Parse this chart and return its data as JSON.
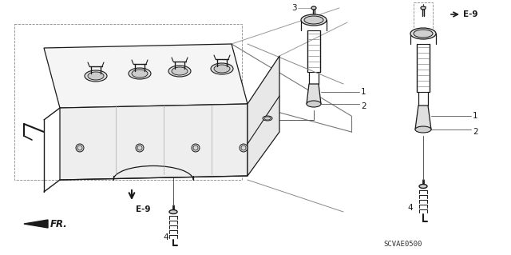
{
  "bg_color": "#ffffff",
  "line_color": "#1a1a1a",
  "dash_color": "#555555",
  "e9_label": "E-9",
  "fr_label": "FR.",
  "part_number": "SCVAE0500",
  "figsize": [
    6.4,
    3.19
  ],
  "dpi": 100,
  "part_labels": {
    "1": "1",
    "2": "2",
    "3": "3",
    "4": "4"
  }
}
